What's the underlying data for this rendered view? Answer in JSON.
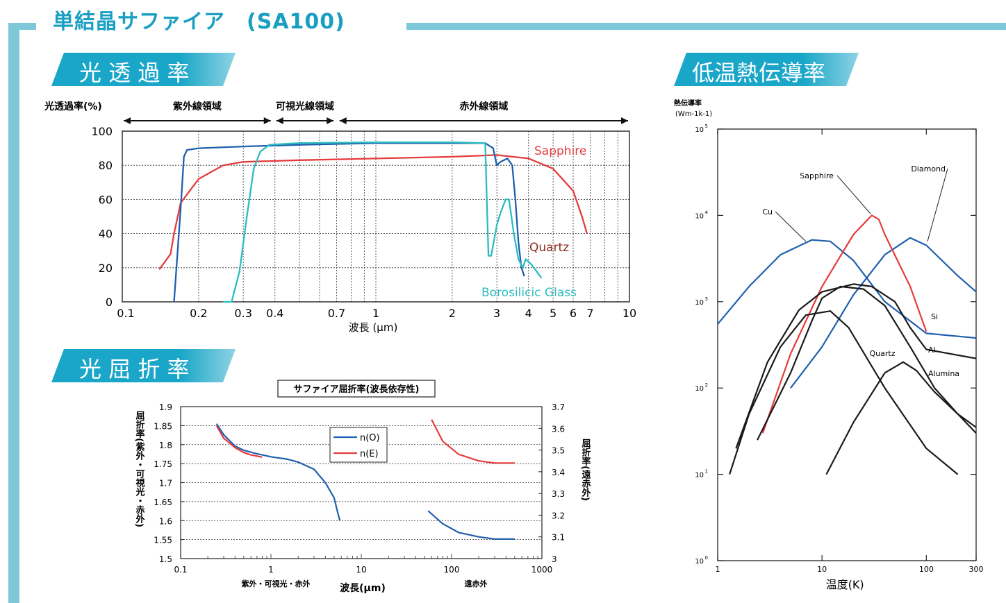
{
  "title": "単結晶サファイア　(SA100)",
  "sections": {
    "transmission": "光 透 過 率",
    "refraction": "光 屈 折 率",
    "thermal": "低温熱伝導率"
  },
  "colors": {
    "accent": "#1a9fc2",
    "band": "#7ec8d9",
    "blue": "#1f5fae",
    "red": "#e53b3b",
    "teal": "#2bbcc0",
    "black": "#1a1a1a"
  },
  "chart_data": [
    {
      "type": "line",
      "ylabel": "光透過率(%)",
      "xlabel": "波長 (μm)",
      "xscale": "log",
      "xlim": [
        0.1,
        10
      ],
      "ylim": [
        0,
        100
      ],
      "x_ticks": [
        0.1,
        0.2,
        0.3,
        0.4,
        0.7,
        1,
        2,
        3,
        4,
        5,
        6,
        7,
        10
      ],
      "x_tick_labels": [
        "0.1",
        "0.2",
        "0.3",
        "0.4",
        "0.7",
        "1",
        "2",
        "3",
        "4",
        "5",
        "6",
        "7",
        "10"
      ],
      "y_ticks": [
        0,
        20,
        40,
        60,
        80,
        100
      ],
      "y_tick_labels": [
        "0",
        "20",
        "40",
        "60",
        "80",
        "100"
      ],
      "regions": [
        {
          "label": "紫外線領域",
          "from": 0.1,
          "to": 0.39
        },
        {
          "label": "可視光線領域",
          "from": 0.4,
          "to": 0.69
        },
        {
          "label": "赤外線領域",
          "from": 0.71,
          "to": 10
        }
      ],
      "series": [
        {
          "name": "Sapphire",
          "color": "#e53b3b",
          "points": [
            [
              0.14,
              19
            ],
            [
              0.155,
              28
            ],
            [
              0.16,
              40
            ],
            [
              0.17,
              58
            ],
            [
              0.2,
              72
            ],
            [
              0.25,
              80
            ],
            [
              0.3,
              82
            ],
            [
              0.5,
              83
            ],
            [
              1,
              84
            ],
            [
              2,
              85
            ],
            [
              3,
              86
            ],
            [
              4,
              84
            ],
            [
              5,
              78
            ],
            [
              6,
              65
            ],
            [
              6.5,
              50
            ],
            [
              6.8,
              40
            ]
          ]
        },
        {
          "name": "Quartz",
          "color": "#1f5fae",
          "points": [
            [
              0.16,
              0
            ],
            [
              0.17,
              55
            ],
            [
              0.175,
              85
            ],
            [
              0.18,
              89
            ],
            [
              0.2,
              90
            ],
            [
              0.3,
              91
            ],
            [
              0.5,
              92
            ],
            [
              1,
              93
            ],
            [
              2,
              93
            ],
            [
              2.7,
              93
            ],
            [
              2.9,
              90
            ],
            [
              3.0,
              80
            ],
            [
              3.1,
              82
            ],
            [
              3.3,
              84
            ],
            [
              3.45,
              80
            ],
            [
              3.55,
              60
            ],
            [
              3.65,
              35
            ],
            [
              3.75,
              20
            ],
            [
              3.85,
              15
            ]
          ]
        },
        {
          "name": "Borosilicic Glass",
          "color": "#2bbcc0",
          "points": [
            [
              0.25,
              0
            ],
            [
              0.27,
              0
            ],
            [
              0.29,
              18
            ],
            [
              0.31,
              50
            ],
            [
              0.33,
              78
            ],
            [
              0.35,
              88
            ],
            [
              0.38,
              92
            ],
            [
              0.5,
              93
            ],
            [
              1,
              93.5
            ],
            [
              2,
              93.5
            ],
            [
              2.7,
              93
            ],
            [
              2.75,
              50
            ],
            [
              2.78,
              27
            ],
            [
              2.85,
              27
            ],
            [
              3.0,
              45
            ],
            [
              3.1,
              52
            ],
            [
              3.25,
              60
            ],
            [
              3.35,
              60
            ],
            [
              3.5,
              40
            ],
            [
              3.65,
              25
            ],
            [
              3.8,
              20
            ],
            [
              3.9,
              25
            ],
            [
              4.1,
              22
            ],
            [
              4.5,
              14
            ]
          ]
        }
      ]
    },
    {
      "type": "line",
      "title": "サファイア屈折率(波長依存性)",
      "ylabel": "屈折率(紫外・可視光・赤外)",
      "ylabel_right": "屈折率(遠赤外)",
      "xlabel": "波長(μm)",
      "x_sublabels": [
        "紫外・可視光・赤外",
        "遠赤外"
      ],
      "xscale": "log",
      "xlim": [
        0.1,
        1000
      ],
      "ylim": [
        1.5,
        1.9
      ],
      "ylim_right": [
        3.0,
        3.7
      ],
      "x_ticks": [
        0.1,
        1,
        10,
        100,
        1000
      ],
      "x_tick_labels": [
        "0.1",
        "1",
        "10",
        "100",
        "1000"
      ],
      "y_ticks": [
        1.5,
        1.55,
        1.6,
        1.65,
        1.7,
        1.75,
        1.8,
        1.85,
        1.9
      ],
      "y_tick_labels": [
        "1.5",
        "1.55",
        "1.6",
        "1.65",
        "1.7",
        "1.75",
        "1.8",
        "1.85",
        "1.9"
      ],
      "y_ticks_right": [
        3.0,
        3.1,
        3.2,
        3.3,
        3.4,
        3.5,
        3.6,
        3.7
      ],
      "y_tick_labels_right": [
        "3",
        "3.1",
        "3.2",
        "3.3",
        "3.4",
        "3.5",
        "3.6",
        "3.7"
      ],
      "series": [
        {
          "name": "n(O)",
          "color": "#1f5fae",
          "axis": "left",
          "points": [
            [
              0.25,
              1.855
            ],
            [
              0.3,
              1.826
            ],
            [
              0.4,
              1.796
            ],
            [
              0.5,
              1.785
            ],
            [
              0.7,
              1.776
            ],
            [
              1,
              1.768
            ],
            [
              1.5,
              1.762
            ],
            [
              2,
              1.754
            ],
            [
              3,
              1.735
            ],
            [
              4,
              1.7
            ],
            [
              5,
              1.66
            ],
            [
              5.5,
              1.62
            ],
            [
              5.8,
              1.6
            ]
          ]
        },
        {
          "name": "n(E)",
          "color": "#e53b3b",
          "axis": "left",
          "points": [
            [
              0.25,
              1.85
            ],
            [
              0.3,
              1.817
            ],
            [
              0.4,
              1.792
            ],
            [
              0.5,
              1.779
            ],
            [
              0.6,
              1.773
            ],
            [
              0.8,
              1.767
            ]
          ]
        },
        {
          "name": "n(O) far-IR",
          "color": "#1f5fae",
          "axis": "right",
          "points": [
            [
              55,
              3.22
            ],
            [
              80,
              3.16
            ],
            [
              120,
              3.12
            ],
            [
              200,
              3.1
            ],
            [
              300,
              3.09
            ],
            [
              500,
              3.09
            ]
          ]
        },
        {
          "name": "n(E) far-IR",
          "color": "#e53b3b",
          "axis": "right",
          "points": [
            [
              60,
              3.64
            ],
            [
              80,
              3.54
            ],
            [
              120,
              3.48
            ],
            [
              200,
              3.45
            ],
            [
              300,
              3.44
            ],
            [
              500,
              3.44
            ]
          ]
        }
      ],
      "legend": [
        "n(O)",
        "n(E)"
      ]
    },
    {
      "type": "line",
      "ylabel": "熱伝導率\n(Wm-1k-1)",
      "xlabel": "温度(K)",
      "xscale": "log",
      "yscale": "log",
      "xlim": [
        1,
        300
      ],
      "ylim": [
        1,
        100000
      ],
      "x_ticks": [
        1,
        10,
        100,
        300
      ],
      "x_tick_labels": [
        "1",
        "10",
        "100",
        "300"
      ],
      "y_ticks": [
        1,
        10,
        100,
        1000,
        10000,
        100000
      ],
      "y_tick_labels": [
        "10",
        "10",
        "10",
        "10",
        "10",
        "10"
      ],
      "y_tick_exponents": [
        "0",
        "1",
        "2",
        "3",
        "4",
        "5"
      ],
      "series": [
        {
          "name": "Cu",
          "color": "#1f5fae",
          "points": [
            [
              1,
              550
            ],
            [
              2,
              1500
            ],
            [
              4,
              3500
            ],
            [
              8,
              5200
            ],
            [
              12,
              5000
            ],
            [
              20,
              3000
            ],
            [
              40,
              1000
            ],
            [
              100,
              430
            ],
            [
              300,
              380
            ]
          ]
        },
        {
          "name": "Diamond",
          "color": "#1f5fae",
          "points": [
            [
              5,
              100
            ],
            [
              10,
              300
            ],
            [
              20,
              1200
            ],
            [
              40,
              3500
            ],
            [
              70,
              5500
            ],
            [
              100,
              4500
            ],
            [
              200,
              2000
            ],
            [
              300,
              1300
            ]
          ]
        },
        {
          "name": "Sapphire",
          "color": "#e53b3b",
          "points": [
            [
              2.7,
              30
            ],
            [
              5,
              250
            ],
            [
              10,
              1500
            ],
            [
              20,
              6000
            ],
            [
              30,
              10000
            ],
            [
              35,
              9000
            ],
            [
              40,
              6000
            ],
            [
              70,
              1500
            ],
            [
              100,
              450
            ]
          ]
        },
        {
          "name": "Si",
          "color": "#1a1a1a",
          "points": [
            [
              1.5,
              20
            ],
            [
              3,
              200
            ],
            [
              6,
              800
            ],
            [
              10,
              1300
            ],
            [
              20,
              1600
            ],
            [
              30,
              1500
            ],
            [
              50,
              1000
            ],
            [
              70,
              500
            ],
            [
              100,
              280
            ],
            [
              300,
              220
            ]
          ]
        },
        {
          "name": "Al",
          "color": "#1a1a1a",
          "points": [
            [
              1.3,
              10
            ],
            [
              2,
              50
            ],
            [
              4,
              300
            ],
            [
              7,
              700
            ],
            [
              12,
              780
            ],
            [
              18,
              500
            ],
            [
              40,
              100
            ],
            [
              100,
              20
            ],
            [
              200,
              10
            ]
          ]
        },
        {
          "name": "Quartz",
          "color": "#1a1a1a",
          "points": [
            [
              11,
              10
            ],
            [
              20,
              40
            ],
            [
              40,
              150
            ],
            [
              60,
              200
            ],
            [
              80,
              160
            ],
            [
              120,
              90
            ],
            [
              200,
              50
            ],
            [
              300,
              30
            ]
          ]
        },
        {
          "name": "Alumina",
          "color": "#1a1a1a",
          "points": [
            [
              1,
              1
            ],
            [
              1,
              1
            ]
          ]
        }
      ],
      "labels": [
        "Sapphire",
        "Diamond",
        "Cu",
        "Si",
        "Al",
        "Quartz",
        "Alumina"
      ]
    }
  ]
}
